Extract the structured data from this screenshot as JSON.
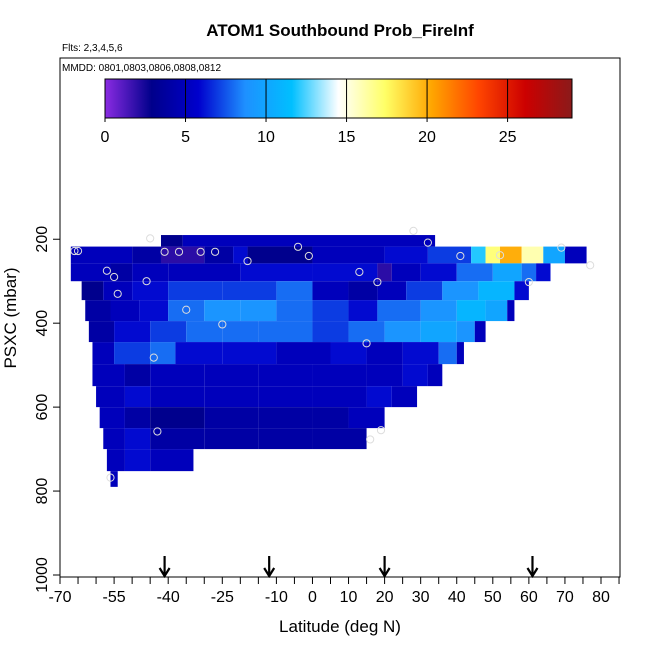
{
  "chart_data": {
    "type": "heatmap",
    "title": "ATOM1 Southbound Prob_FireInf",
    "subtitle_flights": "Flts: 2,3,4,5,6",
    "subtitle_dates": "MMDD: 0801,0803,0806,0808,0812",
    "xlabel": "Latitude (deg N)",
    "ylabel": "PSXC (mbar)",
    "xlim": [
      -70,
      85
    ],
    "ylim": [
      1000,
      50
    ],
    "x_ticks": [
      -70,
      -55,
      -40,
      -25,
      -10,
      0,
      10,
      20,
      30,
      40,
      50,
      60,
      70,
      80
    ],
    "y_ticks": [
      200,
      400,
      600,
      800,
      1000
    ],
    "colorbar": {
      "range": [
        0,
        29
      ],
      "ticks": [
        0,
        5,
        10,
        15,
        20,
        25
      ],
      "colors": [
        "#8a2be2",
        "#00008b",
        "#0000cd",
        "#1e90ff",
        "#00bfff",
        "#ffffff",
        "#ffff66",
        "#ffa500",
        "#ff4500",
        "#cc0000",
        "#8b1a1a"
      ]
    },
    "profile_arrows_latitude": [
      -41,
      -12,
      20,
      61
    ],
    "rows": [
      {
        "p": 200,
        "segs": [
          [
            -42,
            -36,
            3
          ],
          [
            -36,
            34,
            5
          ]
        ]
      },
      {
        "p": 235,
        "segs": [
          [
            -67,
            -50,
            5
          ],
          [
            -50,
            -42,
            4
          ],
          [
            -42,
            -30,
            2
          ],
          [
            -30,
            -22,
            4
          ],
          [
            -22,
            -18,
            6
          ],
          [
            -18,
            0,
            3
          ],
          [
            0,
            20,
            5
          ],
          [
            20,
            32,
            6
          ],
          [
            32,
            44,
            7
          ],
          [
            44,
            48,
            12
          ],
          [
            48,
            52,
            17
          ],
          [
            52,
            58,
            20
          ],
          [
            58,
            64,
            16
          ],
          [
            64,
            70,
            10
          ],
          [
            70,
            76,
            5
          ]
        ]
      },
      {
        "p": 280,
        "segs": [
          [
            -67,
            -56,
            5
          ],
          [
            -56,
            -50,
            4
          ],
          [
            -50,
            -40,
            5
          ],
          [
            -40,
            -20,
            5
          ],
          [
            -20,
            0,
            6
          ],
          [
            0,
            18,
            6
          ],
          [
            18,
            22,
            2
          ],
          [
            22,
            30,
            5
          ],
          [
            30,
            40,
            6
          ],
          [
            40,
            50,
            8
          ],
          [
            50,
            58,
            10
          ],
          [
            58,
            62,
            8
          ],
          [
            62,
            66,
            6
          ]
        ]
      },
      {
        "p": 320,
        "segs": [
          [
            -64,
            -58,
            3
          ],
          [
            -58,
            -50,
            5
          ],
          [
            -50,
            -40,
            6
          ],
          [
            -40,
            -25,
            7
          ],
          [
            -25,
            -10,
            7
          ],
          [
            -10,
            0,
            8
          ],
          [
            0,
            10,
            5
          ],
          [
            10,
            18,
            4
          ],
          [
            18,
            26,
            5
          ],
          [
            26,
            36,
            7
          ],
          [
            36,
            46,
            9
          ],
          [
            46,
            56,
            11
          ],
          [
            56,
            60,
            6
          ]
        ]
      },
      {
        "p": 370,
        "segs": [
          [
            -63,
            -56,
            4
          ],
          [
            -56,
            -48,
            5
          ],
          [
            -48,
            -40,
            6
          ],
          [
            -40,
            -30,
            8
          ],
          [
            -30,
            -20,
            9
          ],
          [
            -20,
            -10,
            9
          ],
          [
            -10,
            0,
            8
          ],
          [
            0,
            10,
            7
          ],
          [
            10,
            18,
            6
          ],
          [
            18,
            30,
            8
          ],
          [
            30,
            40,
            9
          ],
          [
            40,
            48,
            11
          ],
          [
            48,
            54,
            10
          ],
          [
            54,
            56,
            5
          ]
        ]
      },
      {
        "p": 420,
        "segs": [
          [
            -62,
            -55,
            4
          ],
          [
            -55,
            -45,
            6
          ],
          [
            -45,
            -35,
            7
          ],
          [
            -35,
            -25,
            8
          ],
          [
            -25,
            -15,
            8
          ],
          [
            -15,
            0,
            8
          ],
          [
            0,
            10,
            7
          ],
          [
            10,
            20,
            8
          ],
          [
            20,
            30,
            9
          ],
          [
            30,
            40,
            10
          ],
          [
            40,
            45,
            9
          ],
          [
            45,
            48,
            5
          ]
        ]
      },
      {
        "p": 470,
        "segs": [
          [
            -61,
            -55,
            5
          ],
          [
            -55,
            -45,
            7
          ],
          [
            -45,
            -38,
            8
          ],
          [
            -38,
            -25,
            6
          ],
          [
            -25,
            -10,
            6
          ],
          [
            -10,
            5,
            5
          ],
          [
            5,
            15,
            6
          ],
          [
            15,
            25,
            5
          ],
          [
            25,
            35,
            6
          ],
          [
            35,
            40,
            8
          ],
          [
            40,
            42,
            5
          ]
        ]
      },
      {
        "p": 525,
        "segs": [
          [
            -61,
            -52,
            5
          ],
          [
            -52,
            -45,
            4
          ],
          [
            -45,
            -30,
            5
          ],
          [
            -30,
            -15,
            5
          ],
          [
            -15,
            0,
            5
          ],
          [
            0,
            15,
            5
          ],
          [
            15,
            25,
            5
          ],
          [
            25,
            32,
            6
          ],
          [
            32,
            36,
            5
          ]
        ]
      },
      {
        "p": 575,
        "segs": [
          [
            -60,
            -52,
            5
          ],
          [
            -52,
            -45,
            6
          ],
          [
            -45,
            -30,
            5
          ],
          [
            -30,
            -15,
            5
          ],
          [
            -15,
            0,
            5
          ],
          [
            0,
            15,
            5
          ],
          [
            15,
            22,
            6
          ],
          [
            22,
            29,
            5
          ]
        ]
      },
      {
        "p": 625,
        "segs": [
          [
            -59,
            -52,
            5
          ],
          [
            -52,
            -45,
            4
          ],
          [
            -45,
            -30,
            3
          ],
          [
            -30,
            -15,
            4
          ],
          [
            -15,
            0,
            4
          ],
          [
            0,
            10,
            4
          ],
          [
            10,
            20,
            5
          ]
        ]
      },
      {
        "p": 675,
        "segs": [
          [
            -58,
            -52,
            5
          ],
          [
            -52,
            -45,
            6
          ],
          [
            -45,
            -30,
            4
          ],
          [
            -30,
            -15,
            4
          ],
          [
            -15,
            0,
            4
          ],
          [
            0,
            15,
            4
          ]
        ]
      },
      {
        "p": 725,
        "segs": [
          [
            -57,
            -52,
            5
          ],
          [
            -52,
            -45,
            6
          ],
          [
            -45,
            -33,
            5
          ]
        ]
      },
      {
        "p": 780,
        "segs": [
          [
            -56,
            -54,
            5
          ]
        ]
      }
    ],
    "obs_points": [
      [
        -66,
        228
      ],
      [
        -65,
        228
      ],
      [
        -57,
        275
      ],
      [
        -55,
        290
      ],
      [
        -54,
        330
      ],
      [
        -46,
        300
      ],
      [
        -45,
        198
      ],
      [
        -44,
        482
      ],
      [
        -43,
        658
      ],
      [
        -41,
        230
      ],
      [
        -37,
        230
      ],
      [
        -35,
        368
      ],
      [
        -31,
        230
      ],
      [
        -27,
        230
      ],
      [
        -25,
        403
      ],
      [
        -18,
        252
      ],
      [
        -4,
        218
      ],
      [
        -1,
        240
      ],
      [
        13,
        278
      ],
      [
        15,
        448
      ],
      [
        16,
        677
      ],
      [
        18,
        302
      ],
      [
        19,
        655
      ],
      [
        28,
        180
      ],
      [
        32,
        208
      ],
      [
        41,
        240
      ],
      [
        52,
        238
      ],
      [
        60,
        302
      ],
      [
        69,
        220
      ],
      [
        77,
        262
      ],
      [
        -56,
        768
      ]
    ]
  }
}
